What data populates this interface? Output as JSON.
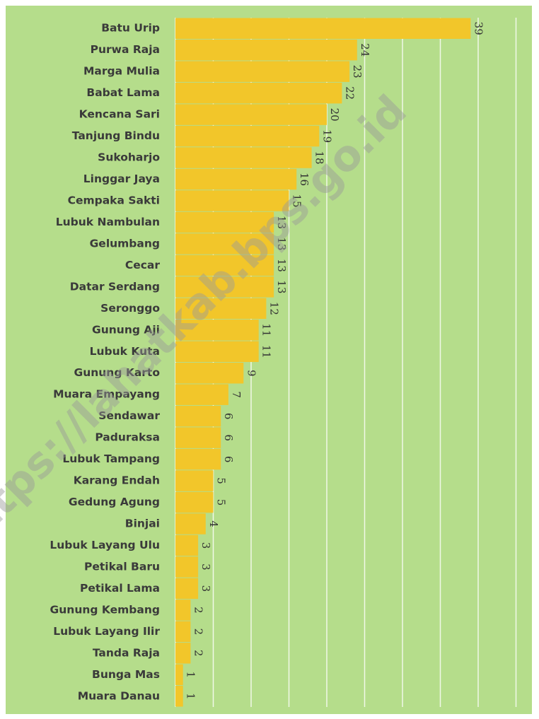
{
  "chart_data": {
    "type": "barh",
    "categories": [
      "Batu Urip",
      "Purwa Raja",
      "Marga Mulia",
      "Babat Lama",
      "Kencana Sari",
      "Tanjung Bindu",
      "Sukoharjo",
      "Linggar Jaya",
      "Cempaka Sakti",
      "Lubuk Nambulan",
      "Gelumbang",
      "Cecar",
      "Datar Serdang",
      "Seronggo",
      "Gunung Aji",
      "Lubuk Kuta",
      "Gunung Karto",
      "Muara Empayang",
      "Sendawar",
      "Paduraksa",
      "Lubuk Tampang",
      "Karang Endah",
      "Gedung Agung",
      "Binjai",
      "Lubuk Layang Ulu",
      "Petikal Baru",
      "Petikal Lama",
      "Gunung Kembang",
      "Lubuk Layang Ilir",
      "Tanda Raja",
      "Bunga Mas",
      "Muara Danau"
    ],
    "values": [
      39,
      24,
      23,
      22,
      20,
      19,
      18,
      16,
      15,
      13,
      13,
      13,
      13,
      12,
      11,
      11,
      9,
      7,
      6,
      6,
      6,
      5,
      5,
      4,
      3,
      3,
      3,
      2,
      2,
      2,
      1,
      1
    ],
    "color": "#f2c62a",
    "xlim": [
      0,
      45
    ],
    "xticks": [
      0,
      5,
      10,
      15,
      20,
      25,
      30,
      35,
      40,
      45
    ],
    "grid": true,
    "watermark": "https://lahatkab.bps.go.id"
  }
}
